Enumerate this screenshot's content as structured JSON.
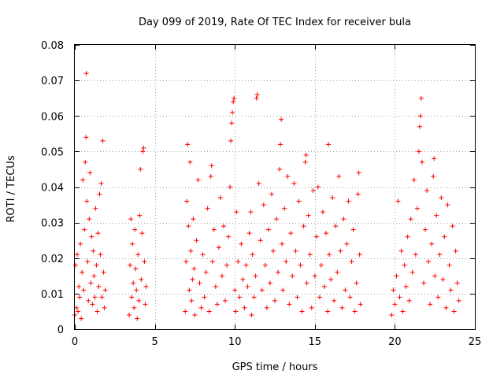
{
  "chart_data": {
    "type": "scatter",
    "title": "Day 099 of 2019, Rate Of TEC Index for receiver bula",
    "xlabel": "GPS time / hours",
    "ylabel": "ROTI / TECUs",
    "xlim": [
      0,
      25
    ],
    "ylim": [
      0,
      0.08
    ],
    "xticks": [
      0,
      5,
      10,
      15,
      20,
      25
    ],
    "xtick_labels": [
      "0",
      "5",
      "10",
      "15",
      "20",
      "25"
    ],
    "yticks": [
      0,
      0.01,
      0.02,
      0.03,
      0.04,
      0.05,
      0.06,
      0.07,
      0.08
    ],
    "ytick_labels": [
      "0",
      "0.01",
      "0.02",
      "0.03",
      "0.04",
      "0.05",
      "0.06",
      "0.07",
      "0.08"
    ],
    "grid": true,
    "marker": "+",
    "series": [
      {
        "name": "ROTI",
        "color": "#ff0000",
        "points": [
          [
            0.0,
            0.004
          ],
          [
            0.05,
            0.018
          ],
          [
            0.1,
            0.006
          ],
          [
            0.15,
            0.021
          ],
          [
            0.2,
            0.005
          ],
          [
            0.25,
            0.012
          ],
          [
            0.3,
            0.009
          ],
          [
            0.35,
            0.024
          ],
          [
            0.4,
            0.003
          ],
          [
            0.45,
            0.016
          ],
          [
            0.5,
            0.042
          ],
          [
            0.55,
            0.011
          ],
          [
            0.6,
            0.028
          ],
          [
            0.65,
            0.047
          ],
          [
            0.7,
            0.054
          ],
          [
            0.72,
            0.072
          ],
          [
            0.75,
            0.036
          ],
          [
            0.8,
            0.019
          ],
          [
            0.85,
            0.008
          ],
          [
            0.9,
            0.031
          ],
          [
            0.95,
            0.044
          ],
          [
            1.0,
            0.013
          ],
          [
            1.05,
            0.026
          ],
          [
            1.1,
            0.007
          ],
          [
            1.15,
            0.022
          ],
          [
            1.2,
            0.015
          ],
          [
            1.25,
            0.009
          ],
          [
            1.3,
            0.034
          ],
          [
            1.35,
            0.018
          ],
          [
            1.4,
            0.005
          ],
          [
            1.45,
            0.027
          ],
          [
            1.5,
            0.012
          ],
          [
            1.55,
            0.038
          ],
          [
            1.6,
            0.021
          ],
          [
            1.65,
            0.041
          ],
          [
            1.7,
            0.009
          ],
          [
            1.75,
            0.053
          ],
          [
            1.8,
            0.016
          ],
          [
            1.85,
            0.006
          ],
          [
            1.9,
            0.011
          ],
          [
            3.4,
            0.004
          ],
          [
            3.45,
            0.018
          ],
          [
            3.5,
            0.031
          ],
          [
            3.55,
            0.009
          ],
          [
            3.6,
            0.024
          ],
          [
            3.65,
            0.013
          ],
          [
            3.7,
            0.006
          ],
          [
            3.75,
            0.028
          ],
          [
            3.8,
            0.017
          ],
          [
            3.85,
            0.011
          ],
          [
            3.9,
            0.003
          ],
          [
            3.95,
            0.021
          ],
          [
            4.0,
            0.008
          ],
          [
            4.05,
            0.032
          ],
          [
            4.1,
            0.045
          ],
          [
            4.15,
            0.014
          ],
          [
            4.2,
            0.027
          ],
          [
            4.25,
            0.05
          ],
          [
            4.3,
            0.051
          ],
          [
            4.35,
            0.019
          ],
          [
            4.4,
            0.007
          ],
          [
            4.45,
            0.012
          ],
          [
            6.9,
            0.005
          ],
          [
            6.95,
            0.019
          ],
          [
            7.0,
            0.036
          ],
          [
            7.05,
            0.052
          ],
          [
            7.1,
            0.029
          ],
          [
            7.15,
            0.011
          ],
          [
            7.2,
            0.047
          ],
          [
            7.25,
            0.022
          ],
          [
            7.3,
            0.008
          ],
          [
            7.35,
            0.014
          ],
          [
            7.4,
            0.031
          ],
          [
            7.45,
            0.017
          ],
          [
            7.5,
            0.004
          ],
          [
            7.6,
            0.025
          ],
          [
            7.7,
            0.042
          ],
          [
            7.8,
            0.013
          ],
          [
            7.9,
            0.006
          ],
          [
            8.0,
            0.021
          ],
          [
            8.1,
            0.009
          ],
          [
            8.2,
            0.016
          ],
          [
            8.3,
            0.034
          ],
          [
            8.4,
            0.005
          ],
          [
            8.5,
            0.043
          ],
          [
            8.55,
            0.046
          ],
          [
            8.6,
            0.019
          ],
          [
            8.7,
            0.028
          ],
          [
            8.8,
            0.012
          ],
          [
            8.9,
            0.007
          ],
          [
            9.0,
            0.023
          ],
          [
            9.1,
            0.037
          ],
          [
            9.2,
            0.015
          ],
          [
            9.3,
            0.029
          ],
          [
            9.4,
            0.008
          ],
          [
            9.5,
            0.018
          ],
          [
            9.6,
            0.026
          ],
          [
            9.7,
            0.04
          ],
          [
            9.75,
            0.053
          ],
          [
            9.8,
            0.058
          ],
          [
            9.85,
            0.061
          ],
          [
            9.9,
            0.064
          ],
          [
            9.95,
            0.065
          ],
          [
            10.0,
            0.011
          ],
          [
            10.05,
            0.005
          ],
          [
            10.1,
            0.033
          ],
          [
            10.2,
            0.019
          ],
          [
            10.3,
            0.009
          ],
          [
            10.4,
            0.024
          ],
          [
            10.5,
            0.014
          ],
          [
            10.6,
            0.006
          ],
          [
            10.7,
            0.018
          ],
          [
            10.8,
            0.012
          ],
          [
            10.9,
            0.027
          ],
          [
            11.0,
            0.033
          ],
          [
            11.05,
            0.004
          ],
          [
            11.1,
            0.021
          ],
          [
            11.2,
            0.009
          ],
          [
            11.3,
            0.015
          ],
          [
            11.35,
            0.065
          ],
          [
            11.4,
            0.066
          ],
          [
            11.5,
            0.041
          ],
          [
            11.6,
            0.025
          ],
          [
            11.7,
            0.011
          ],
          [
            11.8,
            0.035
          ],
          [
            11.9,
            0.018
          ],
          [
            12.0,
            0.006
          ],
          [
            12.1,
            0.028
          ],
          [
            12.2,
            0.013
          ],
          [
            12.3,
            0.038
          ],
          [
            12.4,
            0.022
          ],
          [
            12.5,
            0.008
          ],
          [
            12.6,
            0.031
          ],
          [
            12.7,
            0.016
          ],
          [
            12.8,
            0.045
          ],
          [
            12.85,
            0.052
          ],
          [
            12.9,
            0.059
          ],
          [
            12.95,
            0.024
          ],
          [
            13.0,
            0.011
          ],
          [
            13.1,
            0.034
          ],
          [
            13.2,
            0.019
          ],
          [
            13.3,
            0.043
          ],
          [
            13.4,
            0.007
          ],
          [
            13.5,
            0.027
          ],
          [
            13.6,
            0.015
          ],
          [
            13.7,
            0.041
          ],
          [
            13.8,
            0.022
          ],
          [
            13.9,
            0.009
          ],
          [
            14.0,
            0.036
          ],
          [
            14.1,
            0.018
          ],
          [
            14.2,
            0.005
          ],
          [
            14.3,
            0.029
          ],
          [
            14.4,
            0.047
          ],
          [
            14.45,
            0.049
          ],
          [
            14.5,
            0.013
          ],
          [
            14.6,
            0.032
          ],
          [
            14.7,
            0.021
          ],
          [
            14.8,
            0.006
          ],
          [
            14.9,
            0.039
          ],
          [
            15.0,
            0.015
          ],
          [
            15.1,
            0.026
          ],
          [
            15.2,
            0.04
          ],
          [
            15.3,
            0.009
          ],
          [
            15.4,
            0.018
          ],
          [
            15.5,
            0.033
          ],
          [
            15.6,
            0.012
          ],
          [
            15.7,
            0.027
          ],
          [
            15.8,
            0.005
          ],
          [
            15.85,
            0.052
          ],
          [
            15.9,
            0.021
          ],
          [
            16.0,
            0.014
          ],
          [
            16.1,
            0.037
          ],
          [
            16.2,
            0.008
          ],
          [
            16.3,
            0.029
          ],
          [
            16.4,
            0.016
          ],
          [
            16.5,
            0.043
          ],
          [
            16.6,
            0.022
          ],
          [
            16.7,
            0.006
          ],
          [
            16.8,
            0.031
          ],
          [
            16.9,
            0.011
          ],
          [
            17.0,
            0.024
          ],
          [
            17.1,
            0.036
          ],
          [
            17.2,
            0.009
          ],
          [
            17.3,
            0.019
          ],
          [
            17.4,
            0.028
          ],
          [
            17.5,
            0.005
          ],
          [
            17.6,
            0.013
          ],
          [
            17.7,
            0.038
          ],
          [
            17.75,
            0.044
          ],
          [
            17.8,
            0.021
          ],
          [
            17.85,
            0.007
          ],
          [
            19.8,
            0.004
          ],
          [
            19.9,
            0.011
          ],
          [
            20.0,
            0.007
          ],
          [
            20.1,
            0.015
          ],
          [
            20.2,
            0.036
          ],
          [
            20.3,
            0.009
          ],
          [
            20.4,
            0.022
          ],
          [
            20.5,
            0.005
          ],
          [
            20.6,
            0.018
          ],
          [
            20.7,
            0.012
          ],
          [
            20.8,
            0.026
          ],
          [
            20.9,
            0.008
          ],
          [
            21.0,
            0.031
          ],
          [
            21.1,
            0.016
          ],
          [
            21.2,
            0.042
          ],
          [
            21.3,
            0.021
          ],
          [
            21.4,
            0.034
          ],
          [
            21.5,
            0.05
          ],
          [
            21.55,
            0.057
          ],
          [
            21.6,
            0.06
          ],
          [
            21.65,
            0.065
          ],
          [
            21.7,
            0.047
          ],
          [
            21.8,
            0.013
          ],
          [
            21.9,
            0.028
          ],
          [
            22.0,
            0.039
          ],
          [
            22.1,
            0.019
          ],
          [
            22.2,
            0.007
          ],
          [
            22.3,
            0.024
          ],
          [
            22.4,
            0.043
          ],
          [
            22.45,
            0.048
          ],
          [
            22.5,
            0.015
          ],
          [
            22.6,
            0.032
          ],
          [
            22.7,
            0.009
          ],
          [
            22.8,
            0.021
          ],
          [
            22.9,
            0.037
          ],
          [
            23.0,
            0.014
          ],
          [
            23.1,
            0.026
          ],
          [
            23.2,
            0.006
          ],
          [
            23.3,
            0.035
          ],
          [
            23.4,
            0.018
          ],
          [
            23.5,
            0.011
          ],
          [
            23.6,
            0.029
          ],
          [
            23.7,
            0.005
          ],
          [
            23.8,
            0.022
          ],
          [
            23.9,
            0.013
          ],
          [
            24.0,
            0.008
          ]
        ]
      }
    ]
  }
}
